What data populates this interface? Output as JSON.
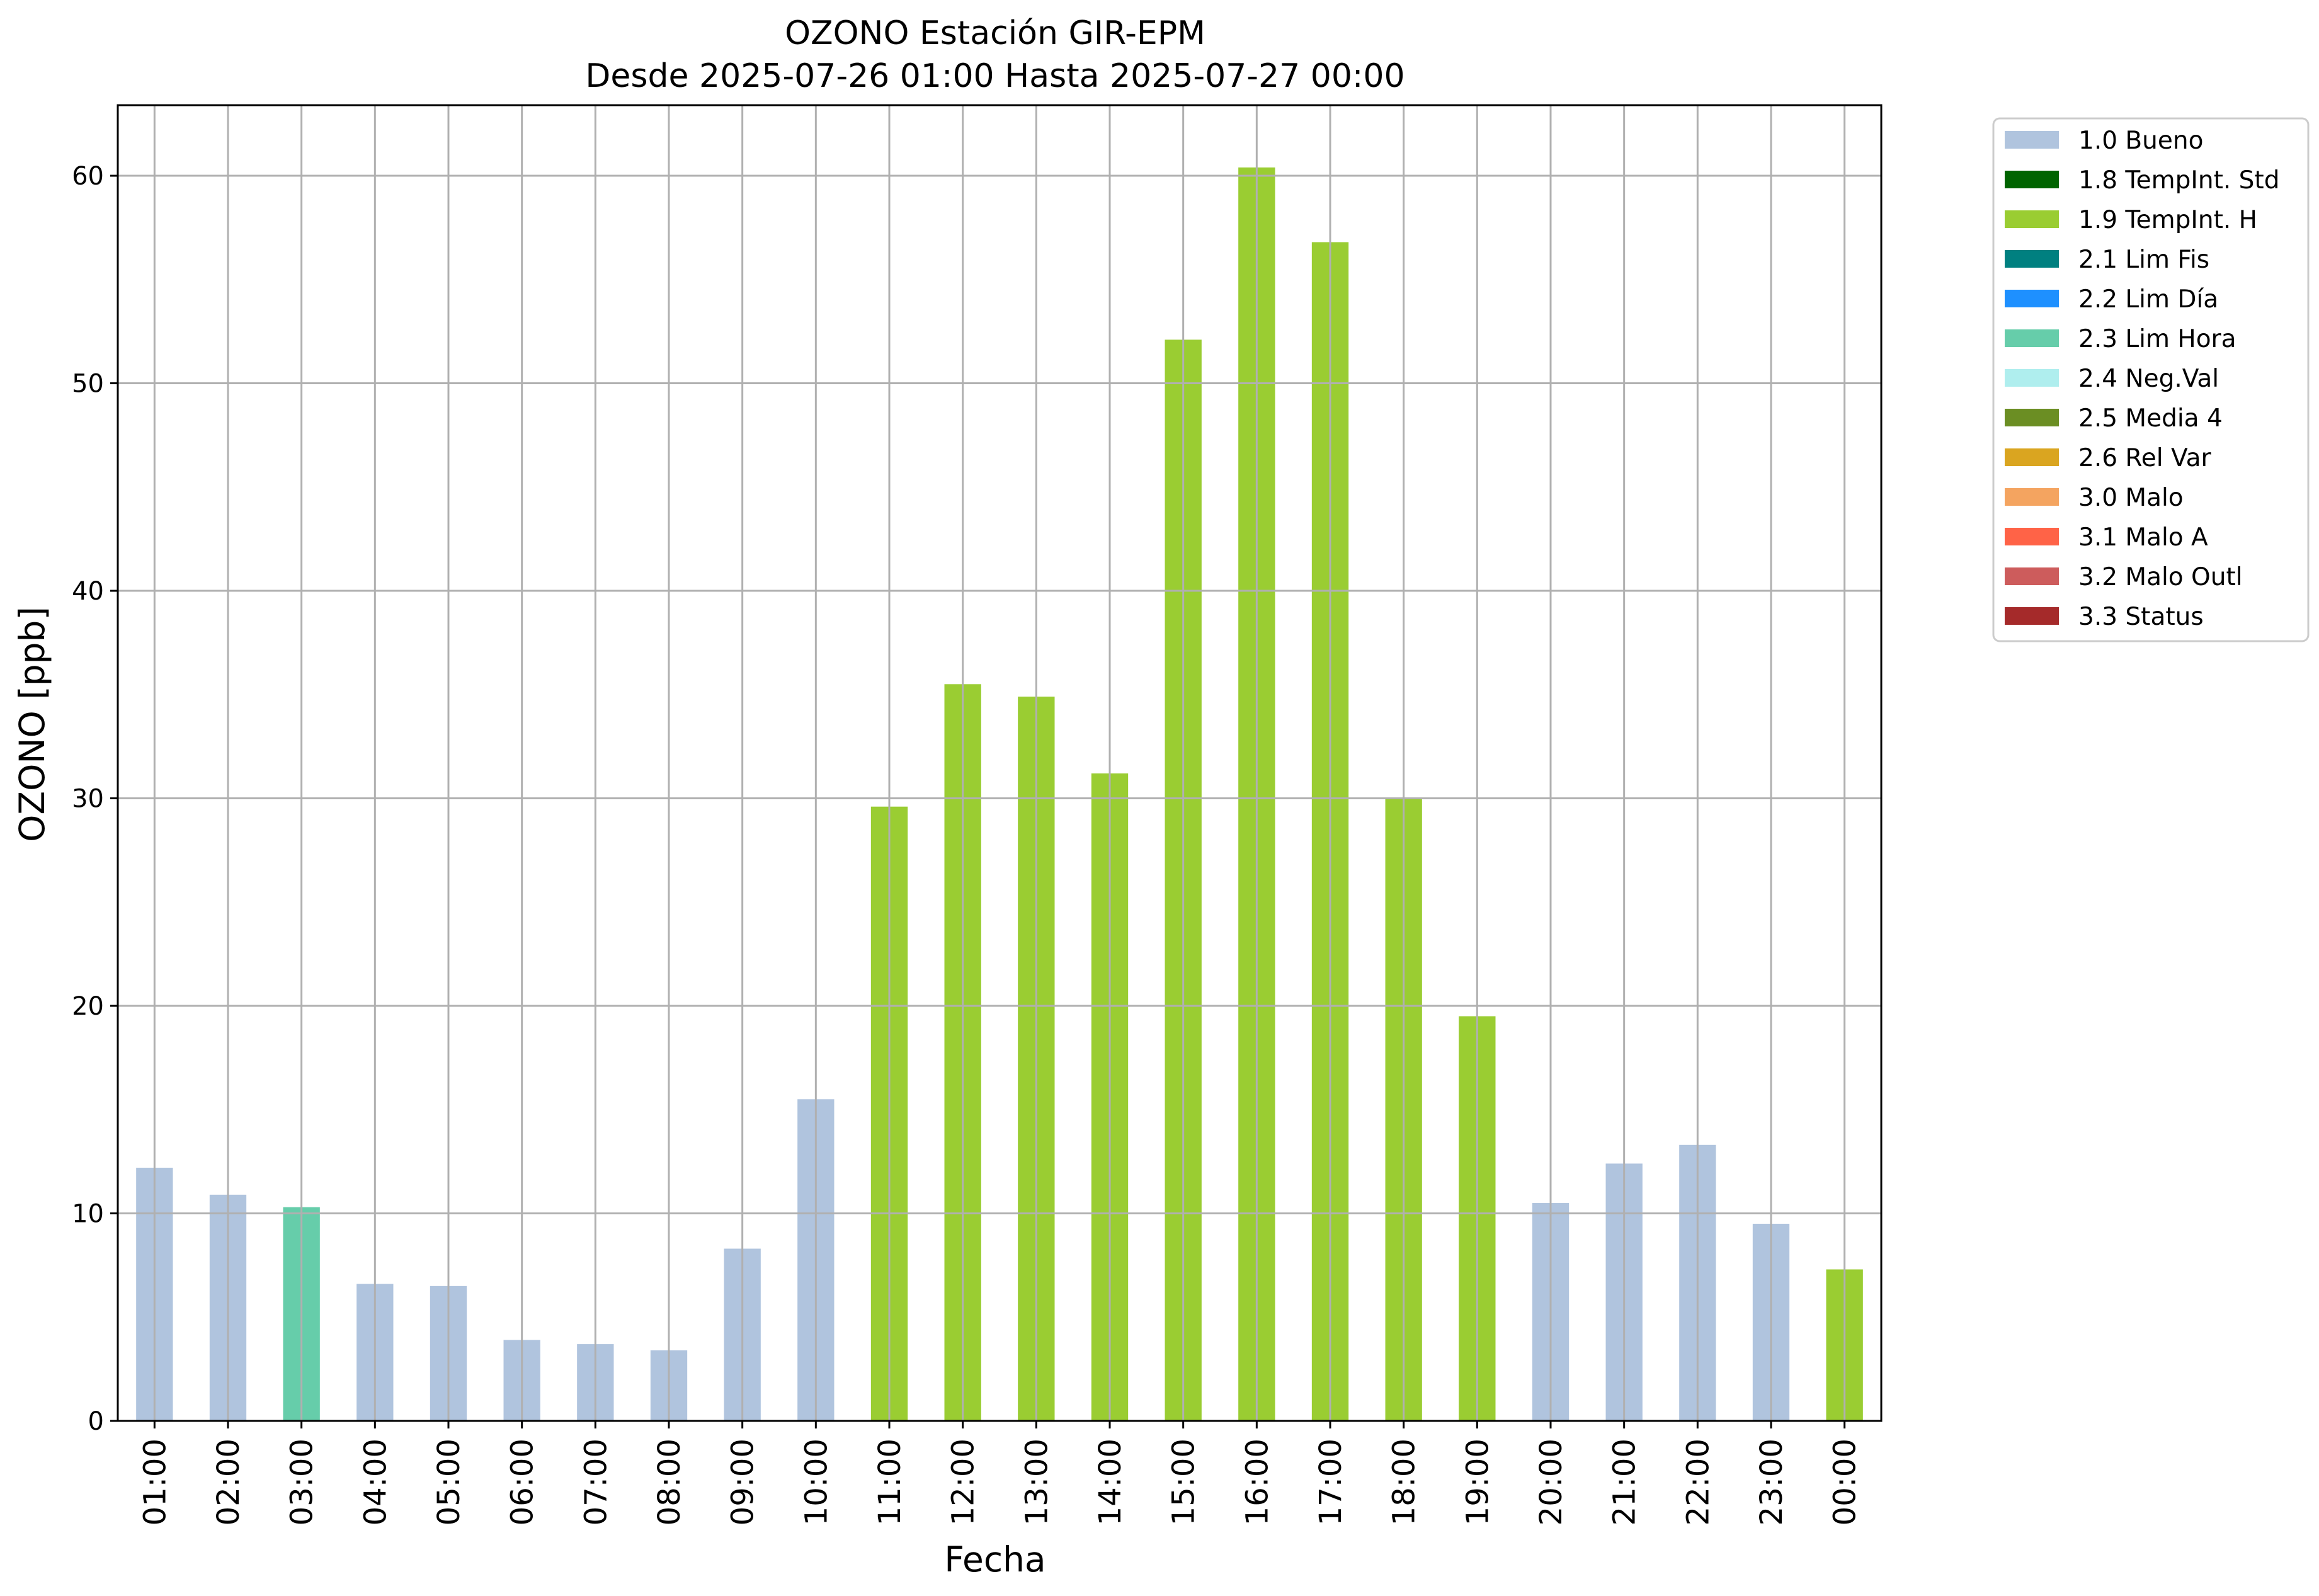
{
  "chart_data": {
    "type": "bar",
    "title_line1": "OZONO Estación GIR-EPM",
    "title_line2": "Desde 2025-07-26 01:00 Hasta 2025-07-27 00:00",
    "xlabel": "Fecha",
    "ylabel": "OZONO [ppb]",
    "ylim": [
      0,
      63.4
    ],
    "yticks": [
      "0",
      "10",
      "20",
      "30",
      "40",
      "50",
      "60"
    ],
    "grid": true,
    "legend_position": "outside-right-top",
    "categories": [
      "01:00",
      "02:00",
      "03:00",
      "04:00",
      "05:00",
      "06:00",
      "07:00",
      "08:00",
      "09:00",
      "10:00",
      "11:00",
      "12:00",
      "13:00",
      "14:00",
      "15:00",
      "16:00",
      "17:00",
      "18:00",
      "19:00",
      "20:00",
      "21:00",
      "22:00",
      "23:00",
      "00:00"
    ],
    "values": [
      12.2,
      10.9,
      10.3,
      6.6,
      6.5,
      3.9,
      3.7,
      3.4,
      8.3,
      15.5,
      29.6,
      35.5,
      34.9,
      31.2,
      52.1,
      60.4,
      56.8,
      30.0,
      19.5,
      10.5,
      12.4,
      13.3,
      9.5,
      7.3
    ],
    "flags": [
      "1.0",
      "1.0",
      "2.3",
      "1.0",
      "1.0",
      "1.0",
      "1.0",
      "1.0",
      "1.0",
      "1.0",
      "1.9",
      "1.9",
      "1.9",
      "1.9",
      "1.9",
      "1.9",
      "1.9",
      "1.9",
      "1.9",
      "1.0",
      "1.0",
      "1.0",
      "1.0",
      "1.9"
    ],
    "legend": [
      {
        "code": "1.0",
        "label": "1.0 Bueno",
        "color": "#B0C4DE"
      },
      {
        "code": "1.8",
        "label": "1.8 TempInt. Std",
        "color": "#006400"
      },
      {
        "code": "1.9",
        "label": "1.9 TempInt. H",
        "color": "#9ACD32"
      },
      {
        "code": "2.1",
        "label": "2.1 Lim Fis",
        "color": "#008080"
      },
      {
        "code": "2.2",
        "label": "2.2 Lim Día",
        "color": "#1E90FF"
      },
      {
        "code": "2.3",
        "label": "2.3 Lim Hora",
        "color": "#66CDAA"
      },
      {
        "code": "2.4",
        "label": "2.4 Neg.Val",
        "color": "#AFEEEE"
      },
      {
        "code": "2.5",
        "label": "2.5 Media 4",
        "color": "#6B8E23"
      },
      {
        "code": "2.6",
        "label": "2.6 Rel Var",
        "color": "#DAA520"
      },
      {
        "code": "3.0",
        "label": "3.0 Malo",
        "color": "#F4A460"
      },
      {
        "code": "3.1",
        "label": "3.1 Malo A",
        "color": "#FF6347"
      },
      {
        "code": "3.2",
        "label": "3.2 Malo Outl",
        "color": "#CD5C5C"
      },
      {
        "code": "3.3",
        "label": "3.3 Status",
        "color": "#A52A2A"
      }
    ]
  }
}
